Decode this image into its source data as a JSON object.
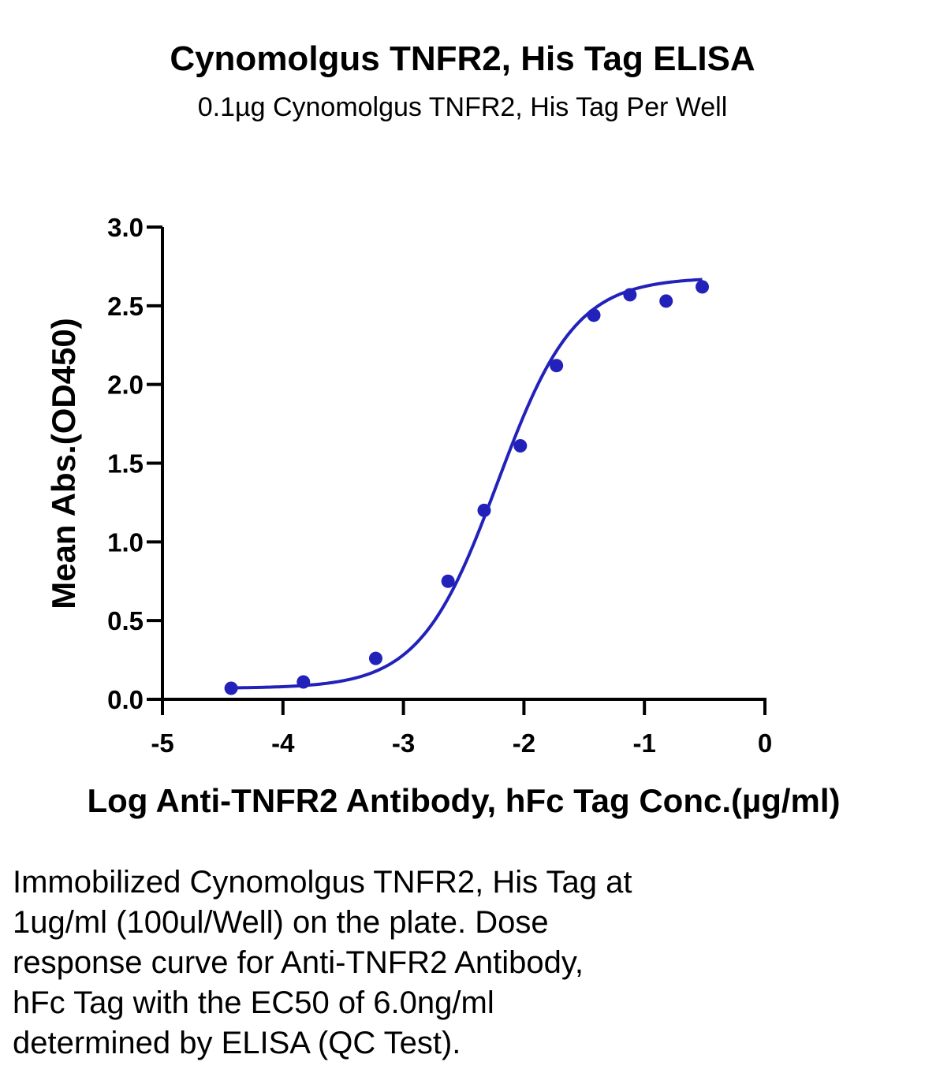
{
  "chart_data": {
    "type": "scatter",
    "title": "Cynomolgus TNFR2, His Tag ELISA",
    "subtitle": "0.1µg Cynomolgus TNFR2, His Tag Per Well",
    "xlabel": "Log Anti-TNFR2 Antibody, hFc Tag Conc.(µg/ml)",
    "ylabel": "Mean Abs.(OD450)",
    "xlim": [
      -5,
      0
    ],
    "ylim": [
      0,
      3.0
    ],
    "x_ticks": [
      "-5",
      "-4",
      "-3",
      "-2",
      "-1",
      "0"
    ],
    "y_ticks": [
      "0.0",
      "0.5",
      "1.0",
      "1.5",
      "2.0",
      "2.5",
      "3.0"
    ],
    "grid": false,
    "series": [
      {
        "color": "#2222bb",
        "x": [
          -4.43,
          -3.83,
          -3.23,
          -2.63,
          -2.33,
          -2.03,
          -1.73,
          -1.42,
          -1.12,
          -0.82,
          -0.52
        ],
        "y": [
          0.07,
          0.11,
          0.26,
          0.75,
          1.2,
          1.61,
          2.12,
          2.44,
          2.57,
          2.53,
          2.62
        ]
      }
    ],
    "fit_curve": {
      "model": "4PL",
      "bottom": 0.07,
      "top": 2.68,
      "log_ec50": -2.22,
      "hill": 1.35,
      "x_range": [
        -4.43,
        -0.52
      ]
    }
  },
  "caption": [
    "Immobilized Cynomolgus TNFR2, His Tag at",
    "1ug/ml (100ul/Well) on the plate. Dose",
    "response curve for Anti-TNFR2 Antibody,",
    "hFc Tag with the EC50 of 6.0ng/ml",
    "determined by ELISA (QC Test)."
  ]
}
